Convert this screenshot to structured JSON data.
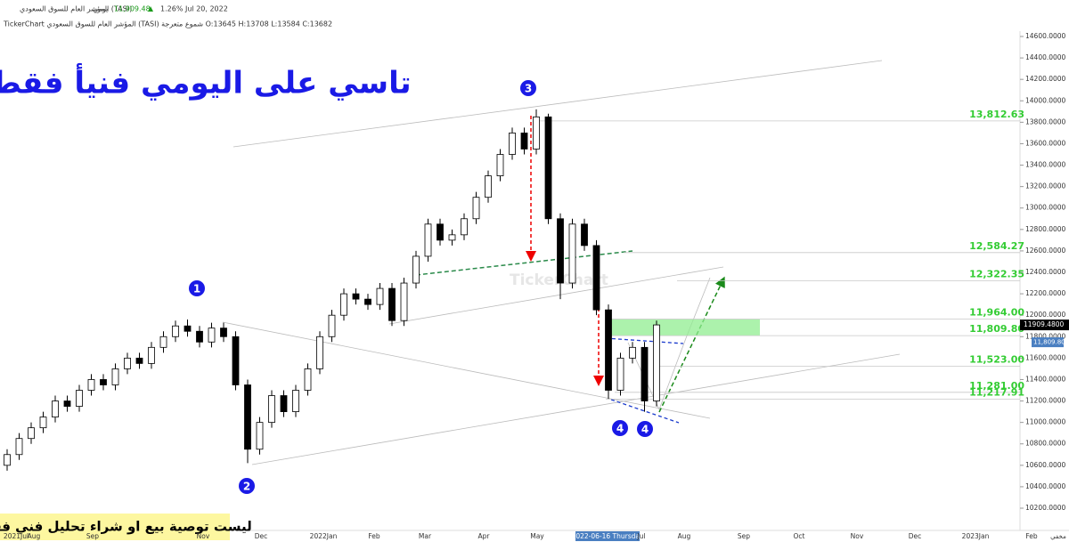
{
  "chart_data": {
    "type": "candlestick",
    "header": {
      "symbol": "المؤشر العام للسوق السعودي (TASI)",
      "interval": "يومي",
      "price": "11,909.48",
      "change": "1.26%",
      "date": "Jul 20, 2022",
      "info": "TickerChart المؤشر العام للسوق السعودي (TASI) شموع متعرجة O:13645 H:13708 L:13584 C:13682"
    },
    "title": "تاسي على اليومي فنيأ فقط",
    "disclaimer": "ليست توصية بيع او شراء تحليل فني فقط",
    "watermark": "TickerChart",
    "wave_labels": [
      "1",
      "2",
      "3",
      "4",
      "4"
    ],
    "corner_label": "مخفي",
    "last_price_label": "11909.4800",
    "support_tag_label": "11,809.80",
    "up_color": "#ffffff",
    "down_color": "#000000",
    "level_color": "#33cc33",
    "zone_color": "#90ee90",
    "x_labels": [
      "2021Jul",
      "Aug",
      "Sep",
      "Nov",
      "Dec",
      "2022Jan",
      "Feb",
      "Mar",
      "Apr",
      "May",
      "2022-06-16 Thursday",
      "Jul",
      "Aug",
      "Sep",
      "Oct",
      "Nov",
      "Dec",
      "2023Jan",
      "Feb"
    ],
    "open": [
      10600,
      10700,
      10850,
      10950,
      11050,
      11200,
      11150,
      11300,
      11400,
      11350,
      11500,
      11600,
      11550,
      11700,
      11800,
      11900,
      11850,
      11750,
      11880,
      11800,
      11350,
      10750,
      11000,
      11250,
      11100,
      11300,
      11500,
      11800,
      12000,
      12200,
      12150,
      12100,
      12250,
      11950,
      12300,
      12550,
      12850,
      12700,
      12750,
      12900,
      13100,
      13300,
      13500,
      13700,
      13550,
      13850,
      12900,
      12300,
      12850,
      12650,
      12050,
      11300,
      11600,
      11700,
      11200
    ],
    "high": [
      10750,
      10900,
      11000,
      11100,
      11250,
      11250,
      11350,
      11450,
      11450,
      11550,
      11650,
      11650,
      11750,
      11850,
      11950,
      11960,
      11900,
      11930,
      11930,
      11850,
      11400,
      11050,
      11300,
      11300,
      11350,
      11550,
      11850,
      12050,
      12250,
      12250,
      12200,
      12300,
      12300,
      12350,
      12600,
      12900,
      12900,
      12800,
      12950,
      13150,
      13350,
      13550,
      13750,
      13750,
      13920,
      13880,
      12950,
      12900,
      12900,
      12700,
      12100,
      11650,
      11750,
      11750,
      11950
    ],
    "low": [
      10550,
      10650,
      10800,
      10900,
      11000,
      11100,
      11100,
      11250,
      11300,
      11300,
      11450,
      11500,
      11500,
      11650,
      11750,
      11800,
      11700,
      11700,
      11750,
      11300,
      10620,
      10700,
      10950,
      11050,
      11050,
      11250,
      11450,
      11750,
      11950,
      12100,
      12050,
      12050,
      11900,
      11900,
      12250,
      12500,
      12650,
      12650,
      12700,
      12850,
      13050,
      13250,
      13450,
      13500,
      13500,
      12850,
      12150,
      12250,
      12600,
      12000,
      11220,
      11250,
      11550,
      11100,
      11150
    ],
    "close": [
      10700,
      10850,
      10950,
      11050,
      11200,
      11150,
      11300,
      11400,
      11350,
      11500,
      11600,
      11550,
      11700,
      11800,
      11900,
      11850,
      11750,
      11880,
      11800,
      11350,
      10750,
      11000,
      11250,
      11100,
      11300,
      11500,
      11800,
      12000,
      12200,
      12150,
      12100,
      12250,
      11950,
      12300,
      12550,
      12850,
      12700,
      12750,
      12900,
      13100,
      13300,
      13500,
      13700,
      13550,
      13850,
      12900,
      12300,
      12850,
      12650,
      12050,
      11300,
      11600,
      11700,
      11200,
      11909.48
    ],
    "levels": [
      {
        "value": 13812.63,
        "label": "13,812.63"
      },
      {
        "value": 12584.27,
        "label": "12,584.27"
      },
      {
        "value": 12322.35,
        "label": "12,322.35"
      },
      {
        "value": 11964.0,
        "label": "11,964.00"
      },
      {
        "value": 11809.8,
        "label": "11,809.80"
      },
      {
        "value": 11523.0,
        "label": "11,523.00"
      },
      {
        "value": 11281.0,
        "label": "11,281.00"
      },
      {
        "value": 11217.91,
        "label": "11,217.91"
      }
    ],
    "ylim": [
      10200,
      14600
    ],
    "yticks": [
      {
        "value": 14600,
        "label": "14600.0000"
      },
      {
        "value": 14400,
        "label": "14400.0000"
      },
      {
        "value": 14200,
        "label": "14200.0000"
      },
      {
        "value": 14000,
        "label": "14000.0000"
      },
      {
        "value": 13800,
        "label": "13800.0000"
      },
      {
        "value": 13600,
        "label": "13600.0000"
      },
      {
        "value": 13400,
        "label": "13400.0000"
      },
      {
        "value": 13200,
        "label": "13200.0000"
      },
      {
        "value": 13000,
        "label": "13000.0000"
      },
      {
        "value": 12800,
        "label": "12800.0000"
      },
      {
        "value": 12600,
        "label": "12600.0000"
      },
      {
        "value": 12400,
        "label": "12400.0000"
      },
      {
        "value": 12200,
        "label": "12200.0000"
      },
      {
        "value": 12000,
        "label": "12000.0000"
      },
      {
        "value": 11800,
        "label": "11800.0000"
      },
      {
        "value": 11600,
        "label": "11600.0000"
      },
      {
        "value": 11400,
        "label": "11400.0000"
      },
      {
        "value": 11200,
        "label": "11200.0000"
      },
      {
        "value": 11000,
        "label": "11000.0000"
      },
      {
        "value": 10800,
        "label": "10800.0000"
      },
      {
        "value": 10600,
        "label": "10600.0000"
      },
      {
        "value": 10400,
        "label": "10400.0000"
      },
      {
        "value": 10200,
        "label": "10200.0000"
      }
    ]
  }
}
